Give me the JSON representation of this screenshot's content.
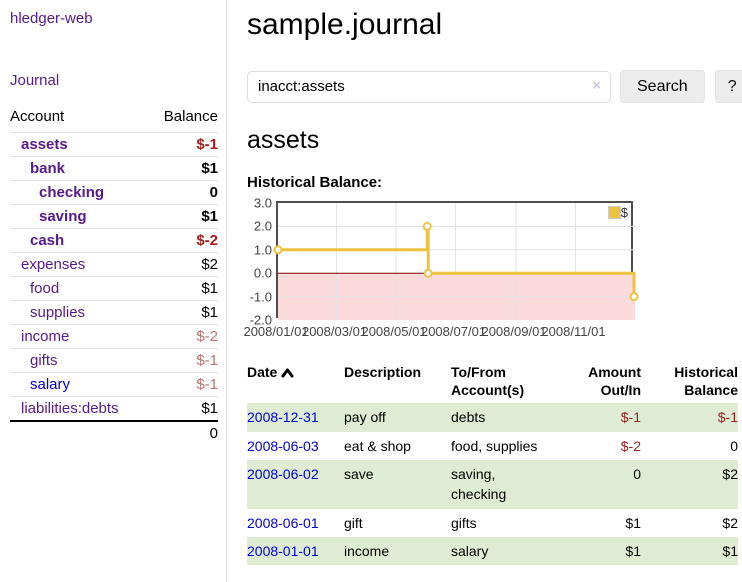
{
  "app": {
    "title": "hledger-web"
  },
  "sidebar": {
    "journal_link": "Journal",
    "accounts_table": {
      "headers": {
        "account": "Account",
        "balance": "Balance"
      },
      "rows": [
        {
          "name": "assets",
          "indent": 0,
          "bold": true,
          "link_color": "purple",
          "balance": "$-1",
          "balance_style": "negative-strong"
        },
        {
          "name": "bank",
          "indent": 1,
          "bold": true,
          "link_color": "purple",
          "balance": "$1",
          "balance_style": "normal"
        },
        {
          "name": "checking",
          "indent": 2,
          "bold": true,
          "link_color": "purple",
          "balance": "0",
          "balance_style": "normal"
        },
        {
          "name": "saving",
          "indent": 2,
          "bold": true,
          "link_color": "purple",
          "balance": "$1",
          "balance_style": "normal"
        },
        {
          "name": "cash",
          "indent": 1,
          "bold": true,
          "link_color": "purple",
          "balance": "$-2",
          "balance_style": "negative-strong"
        },
        {
          "name": "expenses",
          "indent": 0,
          "bold": false,
          "link_color": "purple",
          "balance": "$2",
          "balance_style": "normal"
        },
        {
          "name": "food",
          "indent": 1,
          "bold": false,
          "link_color": "purple",
          "balance": "$1",
          "balance_style": "normal"
        },
        {
          "name": "supplies",
          "indent": 1,
          "bold": false,
          "link_color": "purple",
          "balance": "$1",
          "balance_style": "normal"
        },
        {
          "name": "income",
          "indent": 0,
          "bold": false,
          "link_color": "purple",
          "balance": "$-2",
          "balance_style": "negative-soft"
        },
        {
          "name": "gifts",
          "indent": 1,
          "bold": false,
          "link_color": "purple",
          "balance": "$-1",
          "balance_style": "negative-soft"
        },
        {
          "name": "salary",
          "indent": 1,
          "bold": false,
          "link_color": "blue",
          "balance": "$-1",
          "balance_style": "negative-soft"
        },
        {
          "name": "liabilities:debts",
          "indent": 0,
          "bold": false,
          "link_color": "purple",
          "balance": "$1",
          "balance_style": "normal"
        }
      ],
      "total": "0"
    }
  },
  "main": {
    "title": "sample.journal",
    "search": {
      "value": "inacct:assets",
      "clear_icon": "×",
      "button": "Search",
      "help_button": "?"
    },
    "account_heading": "assets",
    "chart_label": "Historical Balance:"
  },
  "chart_data": {
    "type": "line",
    "title": "Historical Balance",
    "step": true,
    "series": [
      {
        "name": "$",
        "color": "#edc240",
        "points": [
          {
            "date": "2008-01-01",
            "day": 0,
            "value": 1
          },
          {
            "date": "2008-06-02",
            "day": 153,
            "value": 2
          },
          {
            "date": "2008-06-03",
            "day": 154,
            "value": 0
          },
          {
            "date": "2008-12-31",
            "day": 365,
            "value": -1
          }
        ]
      }
    ],
    "ylim": [
      -2,
      3
    ],
    "yticks": [
      3.0,
      2.0,
      1.0,
      0.0,
      -1.0,
      -2.0
    ],
    "xlim_days": [
      0,
      366
    ],
    "xticks": [
      {
        "label": "2008/01/01",
        "day": 0
      },
      {
        "label": "2008/03/01",
        "day": 60
      },
      {
        "label": "2008/05/01",
        "day": 121
      },
      {
        "label": "2008/07/01",
        "day": 182
      },
      {
        "label": "2008/09/01",
        "day": 244
      },
      {
        "label": "2008/11/01",
        "day": 305
      }
    ],
    "grid": true,
    "legend_position": "top-right",
    "negative_fill": "#fadada",
    "zero_line_color": "#800000",
    "gridline_color": "#e3e3e3"
  },
  "register": {
    "headers": [
      {
        "line1": "Date",
        "line2": "",
        "align": "left",
        "sorted": "asc"
      },
      {
        "line1": "Description",
        "line2": "",
        "align": "left"
      },
      {
        "line1": "To/From",
        "line2": "Account(s)",
        "align": "left"
      },
      {
        "line1": "Amount",
        "line2": "Out/In",
        "align": "right"
      },
      {
        "line1": "Historical",
        "line2": "Balance",
        "align": "right"
      }
    ],
    "rows": [
      {
        "date": "2008-12-31",
        "description": "pay off",
        "accounts": "debts",
        "amount": "$-1",
        "amount_negative": true,
        "balance": "$-1",
        "balance_negative": true,
        "shaded": true
      },
      {
        "date": "2008-06-03",
        "description": "eat & shop",
        "accounts": "food, supplies",
        "amount": "$-2",
        "amount_negative": true,
        "balance": "0",
        "balance_negative": false,
        "shaded": false
      },
      {
        "date": "2008-06-02",
        "description": "save",
        "accounts": "saving, checking",
        "amount": "0",
        "amount_negative": false,
        "balance": "$2",
        "balance_negative": false,
        "shaded": true
      },
      {
        "date": "2008-06-01",
        "description": "gift",
        "accounts": "gifts",
        "amount": "$1",
        "amount_negative": false,
        "balance": "$2",
        "balance_negative": false,
        "shaded": false
      },
      {
        "date": "2008-01-01",
        "description": "income",
        "accounts": "salary",
        "amount": "$1",
        "amount_negative": false,
        "balance": "$1",
        "balance_negative": false,
        "shaded": true
      }
    ]
  },
  "colors": {
    "link_purple": "#551a8b",
    "link_blue": "#0000dd",
    "negative_strong": "#a31d1d",
    "negative_soft": "#bc7272",
    "row_green": "#ddecd2",
    "series_yellow": "#edc240",
    "chart_negative_fill": "#fadada",
    "chart_zero_line": "#800000"
  }
}
